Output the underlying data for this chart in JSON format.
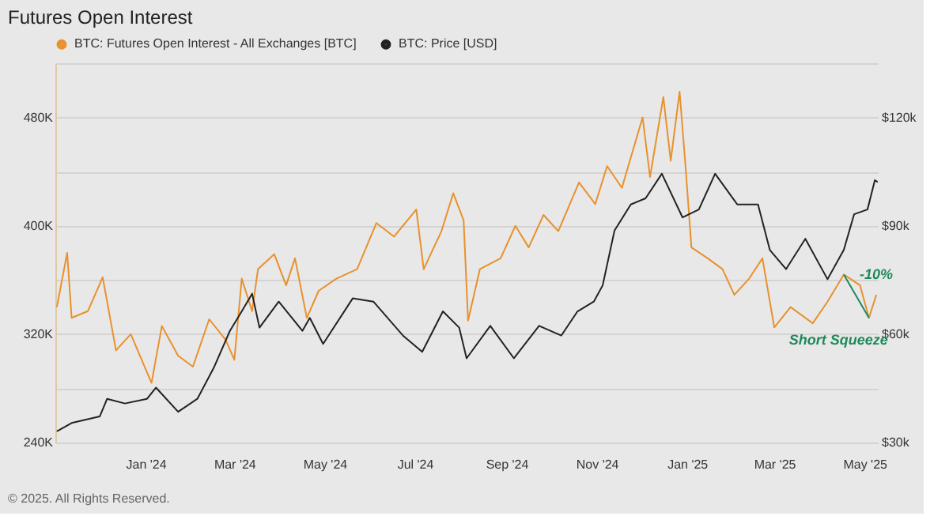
{
  "chart_data": {
    "type": "line",
    "title": "Futures Open Interest",
    "xlim": [
      "2023-11-01",
      "2025-05-10"
    ],
    "xticks": [
      {
        "value": "2024-01-01",
        "label": "Jan '24"
      },
      {
        "value": "2024-03-01",
        "label": "Mar '24"
      },
      {
        "value": "2024-05-01",
        "label": "May '24"
      },
      {
        "value": "2024-07-01",
        "label": "Jul '24"
      },
      {
        "value": "2024-09-01",
        "label": "Sep '24"
      },
      {
        "value": "2024-11-01",
        "label": "Nov '24"
      },
      {
        "value": "2025-01-01",
        "label": "Jan '25"
      },
      {
        "value": "2025-03-01",
        "label": "Mar '25"
      },
      {
        "value": "2025-05-01",
        "label": "May '25"
      }
    ],
    "ylim": [
      240000,
      520000
    ],
    "yticks": [
      {
        "value": 240000,
        "label": "240K"
      },
      {
        "value": 280000,
        "label": null
      },
      {
        "value": 320000,
        "label": "320K"
      },
      {
        "value": 360000,
        "label": null
      },
      {
        "value": 400000,
        "label": "400K"
      },
      {
        "value": 440000,
        "label": null
      },
      {
        "value": 480000,
        "label": "480K"
      },
      {
        "value": 520000,
        "label": null
      }
    ],
    "y2lim": [
      30000,
      135000
    ],
    "y2ticks": [
      {
        "value": 30000,
        "label": "$30k"
      },
      {
        "value": 60000,
        "label": "$60k"
      },
      {
        "value": 90000,
        "label": "$90k"
      },
      {
        "value": 120000,
        "label": "$120k"
      }
    ],
    "grid": "y",
    "legend": "top left",
    "marker": "none",
    "line_style": "solid",
    "series": [
      {
        "name": "BTC: Futures Open Interest - All Exchanges [BTC]",
        "color": "#e8912d",
        "x": [
          "2023-11-02",
          "2023-11-09",
          "2023-11-12",
          "2023-11-23",
          "2023-12-03",
          "2023-12-12",
          "2023-12-22",
          "2024-01-05",
          "2024-01-12",
          "2024-01-23",
          "2024-02-02",
          "2024-02-13",
          "2024-02-24",
          "2024-03-01",
          "2024-03-06",
          "2024-03-13",
          "2024-03-17",
          "2024-03-28",
          "2024-04-05",
          "2024-04-11",
          "2024-04-19",
          "2024-04-27",
          "2024-05-09",
          "2024-05-23",
          "2024-06-05",
          "2024-06-17",
          "2024-07-02",
          "2024-07-07",
          "2024-07-19",
          "2024-07-27",
          "2024-08-03",
          "2024-08-06",
          "2024-08-14",
          "2024-08-28",
          "2024-09-07",
          "2024-09-16",
          "2024-09-26",
          "2024-10-06",
          "2024-10-20",
          "2024-10-31",
          "2024-11-08",
          "2024-11-18",
          "2024-12-02",
          "2024-12-07",
          "2024-12-16",
          "2024-12-21",
          "2024-12-27",
          "2024-12-31",
          "2025-01-04",
          "2025-01-15",
          "2025-01-25",
          "2025-02-02",
          "2025-02-12",
          "2025-02-21",
          "2025-03-01",
          "2025-03-12",
          "2025-03-27",
          "2025-04-06",
          "2025-04-17",
          "2025-04-28",
          "2025-05-04",
          "2025-05-09"
        ],
        "values": [
          340000,
          380000,
          332000,
          337000,
          362000,
          308000,
          320000,
          284000,
          326000,
          304000,
          296000,
          331000,
          316000,
          301000,
          361000,
          337000,
          368000,
          379000,
          356000,
          376000,
          332000,
          352000,
          361000,
          368000,
          402000,
          392000,
          412000,
          368000,
          396000,
          424000,
          404000,
          330000,
          368000,
          376000,
          400000,
          384000,
          408000,
          396000,
          432000,
          416000,
          444000,
          428000,
          480000,
          436000,
          495000,
          448000,
          499000,
          444000,
          384000,
          376000,
          368000,
          349000,
          361000,
          376000,
          325000,
          340000,
          328000,
          344000,
          364000,
          356000,
          332000,
          349000
        ]
      },
      {
        "name": "BTC: Price [USD]",
        "color": "#222222",
        "axis": "y2",
        "x": [
          "2023-11-02",
          "2023-11-12",
          "2023-12-01",
          "2023-12-06",
          "2023-12-18",
          "2024-01-02",
          "2024-01-08",
          "2024-01-23",
          "2024-02-05",
          "2024-02-16",
          "2024-02-27",
          "2024-03-06",
          "2024-03-13",
          "2024-03-18",
          "2024-03-31",
          "2024-04-16",
          "2024-04-21",
          "2024-04-30",
          "2024-05-20",
          "2024-06-03",
          "2024-06-23",
          "2024-07-06",
          "2024-07-20",
          "2024-07-31",
          "2024-08-05",
          "2024-08-21",
          "2024-09-06",
          "2024-09-23",
          "2024-10-08",
          "2024-10-19",
          "2024-10-30",
          "2024-11-05",
          "2024-11-13",
          "2024-11-24",
          "2024-12-04",
          "2024-12-15",
          "2024-12-29",
          "2025-01-09",
          "2025-01-20",
          "2025-02-04",
          "2025-02-18",
          "2025-02-26",
          "2025-03-09",
          "2025-03-22",
          "2025-04-06",
          "2025-04-17",
          "2025-04-24",
          "2025-05-03",
          "2025-05-08",
          "2025-05-10"
        ],
        "values": [
          33100,
          35400,
          37200,
          42100,
          40800,
          42100,
          45200,
          38500,
          42100,
          50600,
          60900,
          66300,
          71200,
          61800,
          69000,
          60900,
          64500,
          57300,
          69900,
          69000,
          59600,
          55100,
          66300,
          61800,
          53300,
          62300,
          53300,
          62300,
          59600,
          66300,
          69000,
          73500,
          88700,
          95900,
          97600,
          104400,
          92300,
          94500,
          104400,
          95900,
          95900,
          83300,
          78000,
          86400,
          75200,
          83300,
          93200,
          94500,
          102600,
          102100
        ]
      }
    ],
    "annotations": [
      {
        "text": "-10%",
        "x": "2025-04-17",
        "y": 364000
      },
      {
        "text": "Short Squeeze",
        "x": "2025-05-04",
        "y": 332000
      },
      "© 2025. All Rights Reserved."
    ]
  }
}
